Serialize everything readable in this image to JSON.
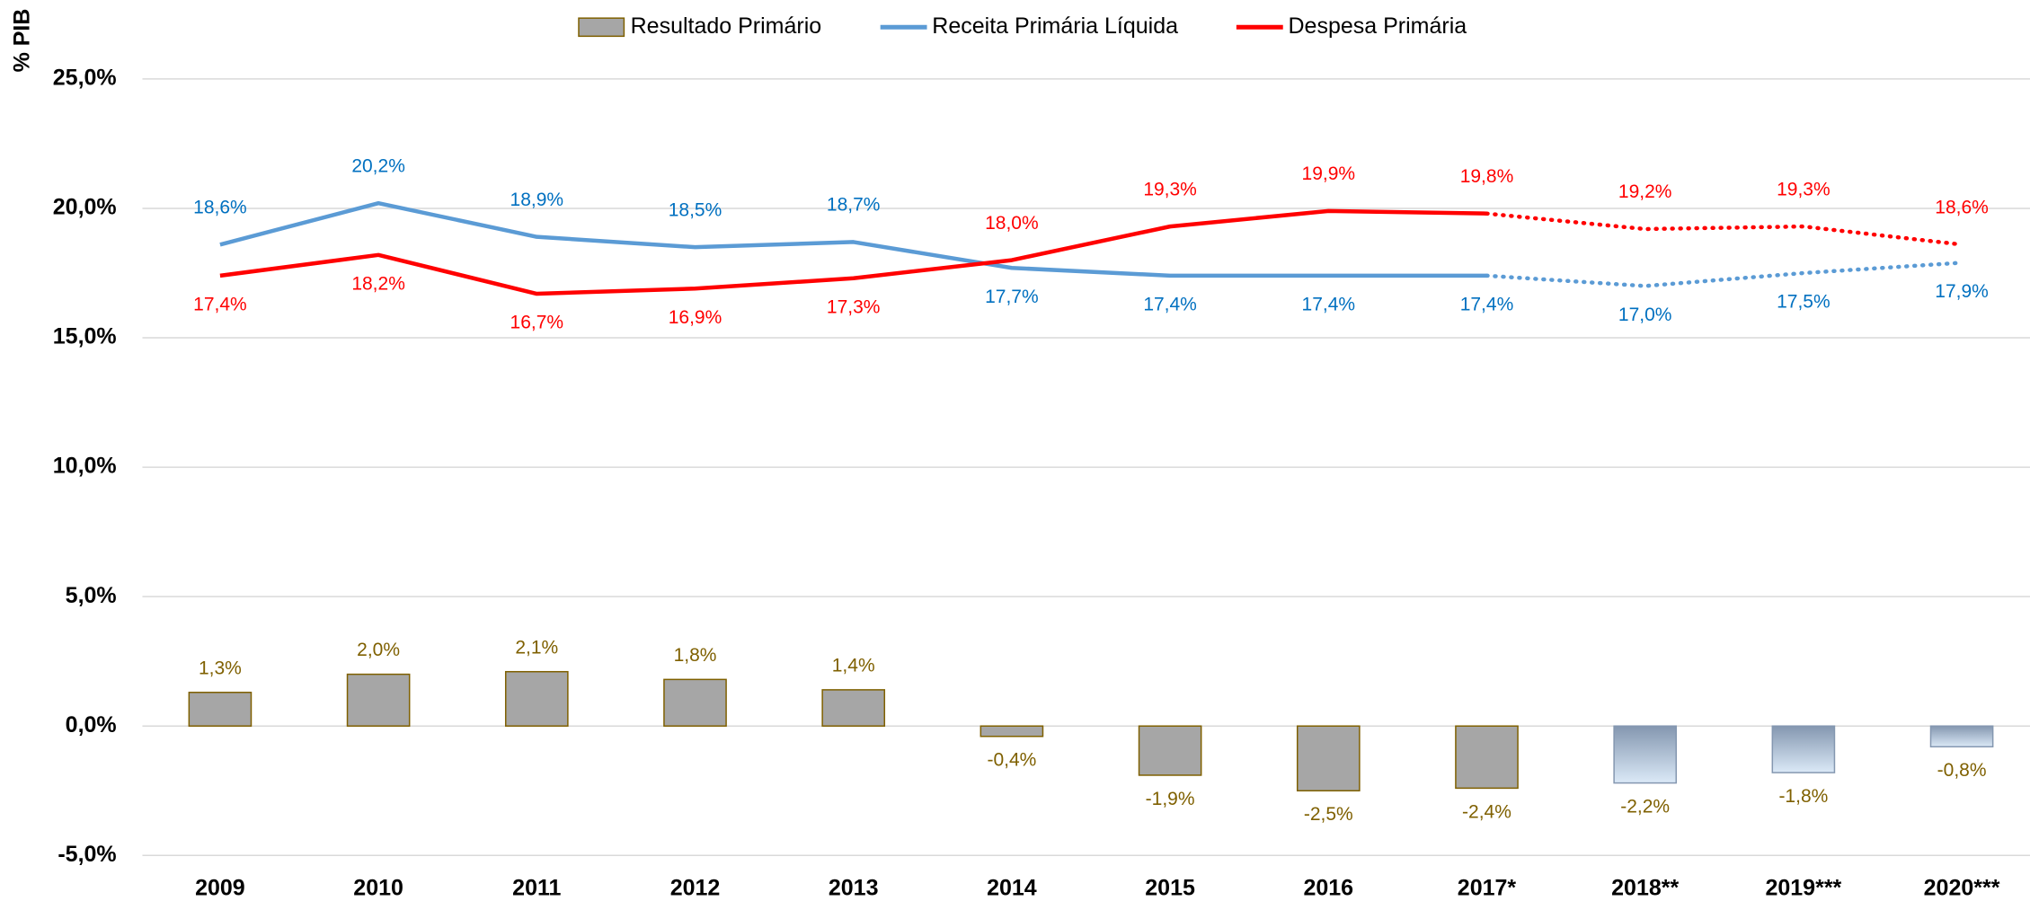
{
  "chart_data": {
    "type": "bar_line",
    "y_axis_label": "% PIB",
    "categories": [
      "2009",
      "2010",
      "2011",
      "2012",
      "2013",
      "2014",
      "2015",
      "2016",
      "2017*",
      "2018**",
      "2019***",
      "2020***"
    ],
    "ylim": [
      -5,
      25
    ],
    "yticks": [
      {
        "value": -5,
        "label": "-5,0%"
      },
      {
        "value": 0,
        "label": "0,0%"
      },
      {
        "value": 5,
        "label": "5,0%"
      },
      {
        "value": 10,
        "label": "10,0%"
      },
      {
        "value": 15,
        "label": "15,0%"
      },
      {
        "value": 20,
        "label": "20,0%"
      },
      {
        "value": 25,
        "label": "25,0%"
      }
    ],
    "grid": true,
    "projected_line_from": 8,
    "projected_bar_from": 9,
    "series": [
      {
        "name": "Resultado Primário",
        "kind": "bar",
        "color": "#a6a6a6",
        "label_color": "#7f6000",
        "values": [
          1.3,
          2.0,
          2.1,
          1.8,
          1.4,
          -0.4,
          -1.9,
          -2.5,
          -2.4,
          -2.2,
          -1.8,
          -0.8
        ],
        "value_labels": [
          "1,3%",
          "2,0%",
          "2,1%",
          "1,8%",
          "1,4%",
          "-0,4%",
          "-1,9%",
          "-2,5%",
          "-2,4%",
          "-2,2%",
          "-1,8%",
          "-0,8%"
        ]
      },
      {
        "name": "Receita Primária Líquida",
        "kind": "line",
        "color": "#5b9bd5",
        "label_color": "#0070c0",
        "values": [
          18.6,
          20.2,
          18.9,
          18.5,
          18.7,
          17.7,
          17.4,
          17.4,
          17.4,
          17.0,
          17.5,
          17.9
        ],
        "value_labels": [
          "18,6%",
          "20,2%",
          "18,9%",
          "18,5%",
          "18,7%",
          "17,7%",
          "17,4%",
          "17,4%",
          "17,4%",
          "17,0%",
          "17,5%",
          "17,9%"
        ]
      },
      {
        "name": "Despesa Primária",
        "kind": "line",
        "color": "#ff0000",
        "label_color": "#ff0000",
        "values": [
          17.4,
          18.2,
          16.7,
          16.9,
          17.3,
          18.0,
          19.3,
          19.9,
          19.8,
          19.2,
          19.3,
          18.6
        ],
        "value_labels": [
          "17,4%",
          "18,2%",
          "16,7%",
          "16,9%",
          "17,3%",
          "18,0%",
          "19,3%",
          "19,9%",
          "19,8%",
          "19,2%",
          "19,3%",
          "18,6%"
        ]
      }
    ]
  }
}
